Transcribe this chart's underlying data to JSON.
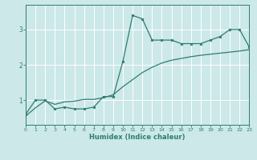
{
  "title": "",
  "xlabel": "Humidex (Indice chaleur)",
  "bg_color": "#cce8e8",
  "line_color": "#2e7d72",
  "grid_color": "#ffffff",
  "x_data": [
    0,
    1,
    2,
    3,
    4,
    5,
    6,
    7,
    8,
    9,
    10,
    11,
    12,
    13,
    14,
    15,
    16,
    17,
    18,
    19,
    20,
    21,
    22,
    23
  ],
  "y_scatter": [
    0.6,
    1.0,
    1.0,
    0.75,
    0.8,
    0.75,
    0.75,
    0.8,
    1.1,
    1.1,
    2.1,
    3.4,
    3.3,
    2.7,
    2.7,
    2.7,
    2.6,
    2.6,
    2.6,
    2.7,
    2.8,
    3.0,
    3.0,
    2.5
  ],
  "y_line": [
    0.55,
    0.78,
    0.98,
    0.88,
    0.95,
    0.97,
    1.02,
    1.02,
    1.07,
    1.15,
    1.38,
    1.58,
    1.78,
    1.93,
    2.05,
    2.13,
    2.18,
    2.23,
    2.27,
    2.3,
    2.33,
    2.36,
    2.39,
    2.43
  ],
  "xlim": [
    0,
    23
  ],
  "ylim": [
    0.3,
    3.7
  ],
  "yticks": [
    1,
    2,
    3
  ],
  "xticks": [
    0,
    1,
    2,
    3,
    4,
    5,
    6,
    7,
    8,
    9,
    10,
    11,
    12,
    13,
    14,
    15,
    16,
    17,
    18,
    19,
    20,
    21,
    22,
    23
  ],
  "marker_size": 2.0,
  "linewidth": 0.9
}
